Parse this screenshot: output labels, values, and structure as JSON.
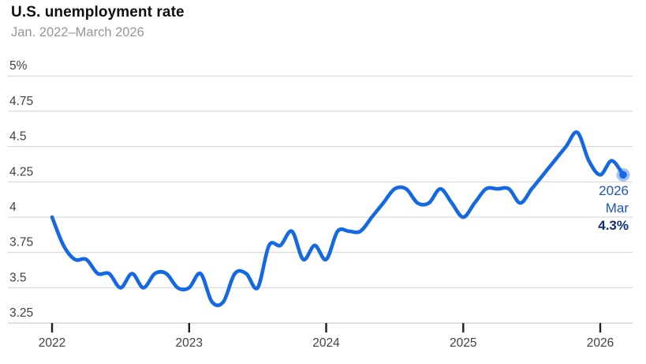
{
  "header": {
    "title": "U.S. unemployment rate",
    "subtitle": "Jan. 2022–March 2026"
  },
  "annotation": {
    "year": "2026",
    "month": "Mar",
    "value": "4.3%"
  },
  "colors": {
    "line": "#1568e4",
    "end_dot": "#1568e4",
    "end_dot_halo": "rgba(21,104,228,0.4)",
    "gridline": "#d2d2d2",
    "axis_line": "#c2c2c2",
    "tick": "#1f1f1f",
    "axis_label": "#414141",
    "title": "#0f0f0f",
    "subtitle": "#969696",
    "annotation_text": "#1e53c2",
    "annotation_value": "#112e7c"
  },
  "chart_data": {
    "type": "line",
    "title": "U.S. unemployment rate",
    "subtitle": "Jan. 2022–March 2026",
    "x_unit": "month",
    "x_start": "2022-01",
    "x_end": "2026-03",
    "x_tick_labels": [
      "2022",
      "2023",
      "2024",
      "2025",
      "2026"
    ],
    "x_tick_month_indices": [
      0,
      12,
      24,
      36,
      48
    ],
    "y_tick_labels": [
      "5%",
      "4.75",
      "4.5",
      "4.25",
      "4",
      "3.75",
      "3.5",
      "3.25"
    ],
    "y_tick_values": [
      5,
      4.75,
      4.5,
      4.25,
      4,
      3.75,
      3.5,
      3.25
    ],
    "ylim": [
      3.25,
      5
    ],
    "grid": true,
    "legend": false,
    "series": [
      {
        "name": "U.S. unemployment rate (%)",
        "values": [
          4.0,
          3.8,
          3.7,
          3.7,
          3.6,
          3.6,
          3.5,
          3.6,
          3.5,
          3.6,
          3.6,
          3.5,
          3.5,
          3.6,
          3.4,
          3.4,
          3.6,
          3.6,
          3.5,
          3.8,
          3.8,
          3.9,
          3.7,
          3.8,
          3.7,
          3.9,
          3.9,
          3.9,
          4.0,
          4.1,
          4.2,
          4.2,
          4.1,
          4.1,
          4.2,
          4.1,
          4.0,
          4.1,
          4.2,
          4.2,
          4.2,
          4.1,
          4.2,
          4.3,
          4.4,
          4.5,
          4.6,
          4.4,
          4.3,
          4.4,
          4.3
        ]
      }
    ],
    "end_label": {
      "year": "2026",
      "month": "Mar",
      "value": "4.3%"
    }
  }
}
